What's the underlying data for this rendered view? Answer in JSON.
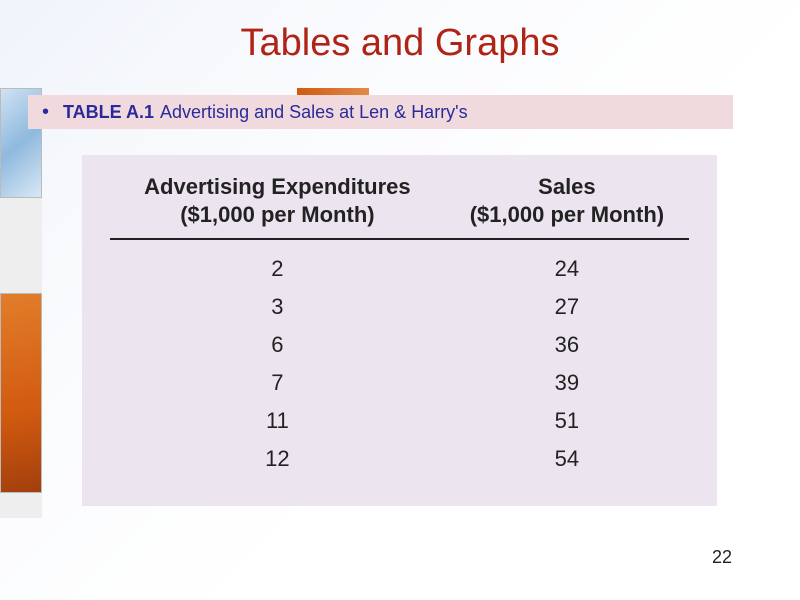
{
  "title": "Tables and Graphs",
  "caption": {
    "label": "TABLE A.1",
    "desc": "Advertising and Sales at Len & Harry's"
  },
  "table": {
    "type": "table",
    "background_color": "#ece5ef",
    "header_border_color": "#222222",
    "text_color": "#222222",
    "font_size_header": 22,
    "font_size_body": 22,
    "columns": [
      {
        "line1": "Advertising Expenditures",
        "line2": "($1,000 per Month)"
      },
      {
        "line1": "Sales",
        "line2": "($1,000 per Month)"
      }
    ],
    "rows": [
      [
        2,
        24
      ],
      [
        3,
        27
      ],
      [
        6,
        36
      ],
      [
        7,
        39
      ],
      [
        11,
        51
      ],
      [
        12,
        54
      ]
    ]
  },
  "page_number": "22",
  "colors": {
    "title_color": "#b02418",
    "caption_bg": "#f1dadd",
    "caption_text": "#2a2a9c",
    "slide_bg_start": "#f0f4fb",
    "slide_bg_end": "#ffffff",
    "deco_orange": "#d15a10",
    "deco_blue": "#8fb9de"
  }
}
